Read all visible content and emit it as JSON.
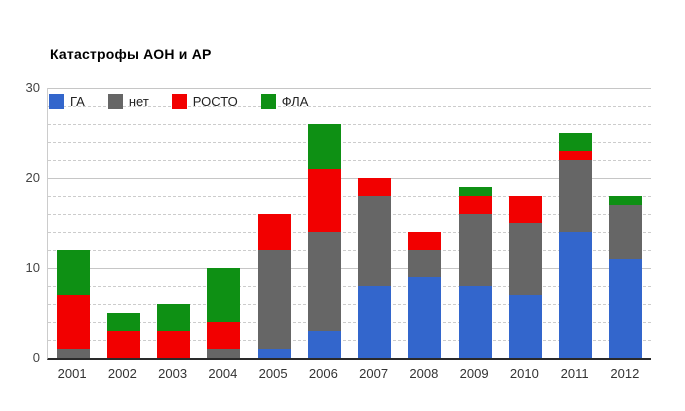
{
  "chart_data": {
    "type": "bar",
    "stacked": true,
    "title": "Катастрофы АОН и АР",
    "categories": [
      "2001",
      "2002",
      "2003",
      "2004",
      "2005",
      "2006",
      "2007",
      "2008",
      "2009",
      "2010",
      "2011",
      "2012"
    ],
    "series": [
      {
        "name": "ГА",
        "color": "#3366CC",
        "values": [
          0,
          0,
          0,
          0,
          1,
          3,
          8,
          9,
          8,
          7,
          14,
          11
        ]
      },
      {
        "name": "нет",
        "color": "#666666",
        "values": [
          1,
          0,
          0,
          1,
          11,
          11,
          10,
          3,
          8,
          8,
          8,
          6
        ]
      },
      {
        "name": "РОСТО",
        "color": "#F20000",
        "values": [
          6,
          3,
          3,
          3,
          4,
          7,
          2,
          2,
          2,
          3,
          1,
          0
        ]
      },
      {
        "name": "ФЛА",
        "color": "#0E9014",
        "values": [
          5,
          2,
          3,
          6,
          0,
          5,
          0,
          0,
          1,
          0,
          2,
          1
        ]
      }
    ],
    "xlabel": "",
    "ylabel": "",
    "ylim": [
      0,
      30
    ],
    "yticks": [
      "0",
      "10",
      "20",
      "30"
    ],
    "minor_grid_step": 2,
    "major_grid_step": 10,
    "grid": true,
    "legend_position": "top-left-inset"
  }
}
